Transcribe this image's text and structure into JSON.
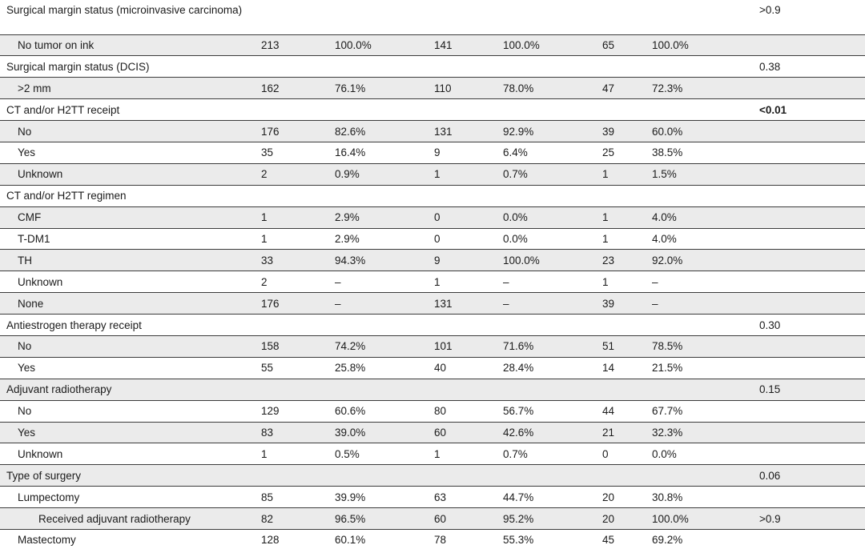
{
  "styles": {
    "stripe_color": "#ebebeb",
    "border_color": "#3b3b3b",
    "text_color": "#1b1b1b",
    "background_color": "#ffffff"
  },
  "chart_data": {
    "type": "table",
    "grid": "horizontal-rules",
    "stripe_pattern": "alternating rows, first row white",
    "columns": [
      "label",
      "n1",
      "pct1",
      "n2",
      "pct2",
      "n3",
      "pct3",
      "p"
    ],
    "rows": [
      {
        "label": "Surgical margin status (microinvasive carcinoma)",
        "indent": 0,
        "n1": "",
        "pct1": "",
        "n2": "",
        "pct2": "",
        "n3": "",
        "pct3": "",
        "p": ">0.9",
        "p_bold": false
      },
      {
        "label": "No tumor on ink",
        "indent": 1,
        "n1": "213",
        "pct1": "100.0%",
        "n2": "141",
        "pct2": "100.0%",
        "n3": "65",
        "pct3": "100.0%",
        "p": "",
        "p_bold": false
      },
      {
        "label": "Surgical margin status (DCIS)",
        "indent": 0,
        "n1": "",
        "pct1": "",
        "n2": "",
        "pct2": "",
        "n3": "",
        "pct3": "",
        "p": "0.38",
        "p_bold": false
      },
      {
        "label": ">2 mm",
        "indent": 1,
        "n1": "162",
        "pct1": "76.1%",
        "n2": "110",
        "pct2": "78.0%",
        "n3": "47",
        "pct3": "72.3%",
        "p": "",
        "p_bold": false
      },
      {
        "label": "CT and/or H2TT receipt",
        "indent": 0,
        "n1": "",
        "pct1": "",
        "n2": "",
        "pct2": "",
        "n3": "",
        "pct3": "",
        "p": "<0.01",
        "p_bold": true
      },
      {
        "label": "No",
        "indent": 1,
        "n1": "176",
        "pct1": "82.6%",
        "n2": "131",
        "pct2": "92.9%",
        "n3": "39",
        "pct3": "60.0%",
        "p": "",
        "p_bold": false
      },
      {
        "label": "Yes",
        "indent": 1,
        "n1": "35",
        "pct1": "16.4%",
        "n2": "9",
        "pct2": "6.4%",
        "n3": "25",
        "pct3": "38.5%",
        "p": "",
        "p_bold": false
      },
      {
        "label": "Unknown",
        "indent": 1,
        "n1": "2",
        "pct1": "0.9%",
        "n2": "1",
        "pct2": "0.7%",
        "n3": "1",
        "pct3": "1.5%",
        "p": "",
        "p_bold": false
      },
      {
        "label": "CT and/or H2TT regimen",
        "indent": 0,
        "n1": "",
        "pct1": "",
        "n2": "",
        "pct2": "",
        "n3": "",
        "pct3": "",
        "p": "",
        "p_bold": false
      },
      {
        "label": "CMF",
        "indent": 1,
        "n1": "1",
        "pct1": "2.9%",
        "n2": "0",
        "pct2": "0.0%",
        "n3": "1",
        "pct3": "4.0%",
        "p": "",
        "p_bold": false
      },
      {
        "label": "T-DM1",
        "indent": 1,
        "n1": "1",
        "pct1": "2.9%",
        "n2": "0",
        "pct2": "0.0%",
        "n3": "1",
        "pct3": "4.0%",
        "p": "",
        "p_bold": false
      },
      {
        "label": "TH",
        "indent": 1,
        "n1": "33",
        "pct1": "94.3%",
        "n2": "9",
        "pct2": "100.0%",
        "n3": "23",
        "pct3": "92.0%",
        "p": "",
        "p_bold": false
      },
      {
        "label": "Unknown",
        "indent": 1,
        "n1": "2",
        "pct1": "–",
        "n2": "1",
        "pct2": "–",
        "n3": "1",
        "pct3": "–",
        "p": "",
        "p_bold": false
      },
      {
        "label": "None",
        "indent": 1,
        "n1": "176",
        "pct1": "–",
        "n2": "131",
        "pct2": "–",
        "n3": "39",
        "pct3": "–",
        "p": "",
        "p_bold": false
      },
      {
        "label": "Antiestrogen therapy receipt",
        "indent": 0,
        "n1": "",
        "pct1": "",
        "n2": "",
        "pct2": "",
        "n3": "",
        "pct3": "",
        "p": "0.30",
        "p_bold": false
      },
      {
        "label": "No",
        "indent": 1,
        "n1": "158",
        "pct1": "74.2%",
        "n2": "101",
        "pct2": "71.6%",
        "n3": "51",
        "pct3": "78.5%",
        "p": "",
        "p_bold": false
      },
      {
        "label": "Yes",
        "indent": 1,
        "n1": "55",
        "pct1": "25.8%",
        "n2": "40",
        "pct2": "28.4%",
        "n3": "14",
        "pct3": "21.5%",
        "p": "",
        "p_bold": false
      },
      {
        "label": "Adjuvant radiotherapy",
        "indent": 0,
        "n1": "",
        "pct1": "",
        "n2": "",
        "pct2": "",
        "n3": "",
        "pct3": "",
        "p": "0.15",
        "p_bold": false
      },
      {
        "label": "No",
        "indent": 1,
        "n1": "129",
        "pct1": "60.6%",
        "n2": "80",
        "pct2": "56.7%",
        "n3": "44",
        "pct3": "67.7%",
        "p": "",
        "p_bold": false
      },
      {
        "label": "Yes",
        "indent": 1,
        "n1": "83",
        "pct1": "39.0%",
        "n2": "60",
        "pct2": "42.6%",
        "n3": "21",
        "pct3": "32.3%",
        "p": "",
        "p_bold": false
      },
      {
        "label": "Unknown",
        "indent": 1,
        "n1": "1",
        "pct1": "0.5%",
        "n2": "1",
        "pct2": "0.7%",
        "n3": "0",
        "pct3": "0.0%",
        "p": "",
        "p_bold": false
      },
      {
        "label": "Type of surgery",
        "indent": 0,
        "n1": "",
        "pct1": "",
        "n2": "",
        "pct2": "",
        "n3": "",
        "pct3": "",
        "p": "0.06",
        "p_bold": false
      },
      {
        "label": "Lumpectomy",
        "indent": 1,
        "n1": "85",
        "pct1": "39.9%",
        "n2": "63",
        "pct2": "44.7%",
        "n3": "20",
        "pct3": "30.8%",
        "p": "",
        "p_bold": false
      },
      {
        "label": "Received adjuvant radiotherapy",
        "indent": 2,
        "n1": "82",
        "pct1": "96.5%",
        "n2": "60",
        "pct2": "95.2%",
        "n3": "20",
        "pct3": "100.0%",
        "p": ">0.9",
        "p_bold": false
      },
      {
        "label": "Mastectomy",
        "indent": 1,
        "n1": "128",
        "pct1": "60.1%",
        "n2": "78",
        "pct2": "55.3%",
        "n3": "45",
        "pct3": "69.2%",
        "p": "",
        "p_bold": false
      }
    ]
  }
}
